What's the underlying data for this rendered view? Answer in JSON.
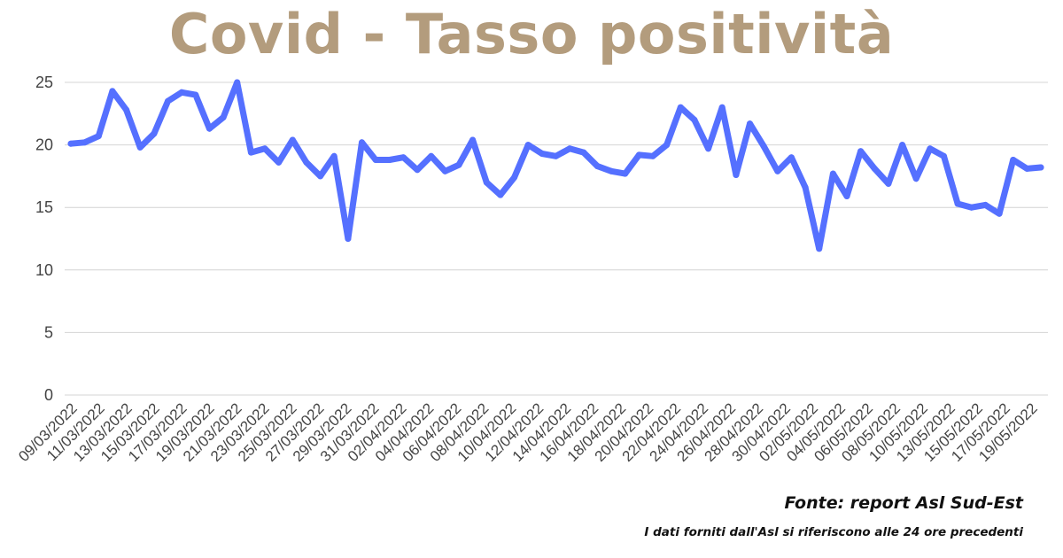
{
  "title": "Covid - Tasso positività",
  "source": "Fonte: report Asl Sud-Est",
  "note": "I dati forniti dall'Asl si riferiscono alle 24 ore precedenti",
  "colors": {
    "title": "#b39c7d",
    "line": "#5570ff",
    "grid": "#d4d4d4",
    "axis_text": "#444444"
  },
  "chart_data": {
    "type": "line",
    "title": "Covid - Tasso positività",
    "xlabel": "",
    "ylabel": "",
    "ylim": [
      0,
      25
    ],
    "yticks": [
      0,
      5,
      10,
      15,
      20,
      25
    ],
    "grid": true,
    "x_tick_labels": [
      "09/03/2022",
      "11/03/2022",
      "13/03/2022",
      "15/03/2022",
      "17/03/2022",
      "19/03/2022",
      "21/03/2022",
      "23/03/2022",
      "25/03/2022",
      "27/03/2022",
      "29/03/2022",
      "31/03/2022",
      "02/04/2022",
      "04/04/2022",
      "06/04/2022",
      "08/04/2022",
      "10/04/2022",
      "12/04/2022",
      "14/04/2022",
      "16/04/2022",
      "18/04/2022",
      "20/04/2022",
      "22/04/2022",
      "24/04/2022",
      "26/04/2022",
      "28/04/2022",
      "30/04/2022",
      "02/05/2022",
      "04/05/2022",
      "06/05/2022",
      "08/05/2022",
      "10/05/2022",
      "13/05/2022",
      "15/05/2022",
      "17/05/2022",
      "19/05/2022"
    ],
    "series": [
      {
        "values": [
          20.1,
          20.2,
          20.7,
          24.3,
          22.8,
          19.8,
          20.9,
          23.5,
          24.2,
          24.0,
          21.3,
          22.2,
          25.0,
          19.4,
          19.7,
          18.6,
          20.4,
          18.6,
          17.5,
          19.1,
          12.5,
          20.2,
          18.8,
          18.8,
          19.0,
          18.0,
          19.1,
          17.9,
          18.4,
          20.4,
          17.0,
          16.0,
          17.4,
          20.0,
          19.3,
          19.1,
          19.7,
          19.4,
          18.3,
          17.9,
          17.7,
          19.2,
          19.1,
          20.0,
          23.0,
          22.0,
          19.7,
          23.0,
          17.6,
          21.7,
          19.9,
          17.9,
          19.0,
          16.6,
          11.7,
          17.7,
          15.9,
          19.5,
          18.1,
          16.9,
          20.0,
          17.3,
          19.7,
          19.1,
          15.3,
          15.0,
          15.2,
          14.5,
          18.8,
          18.1,
          18.2
        ]
      }
    ]
  }
}
